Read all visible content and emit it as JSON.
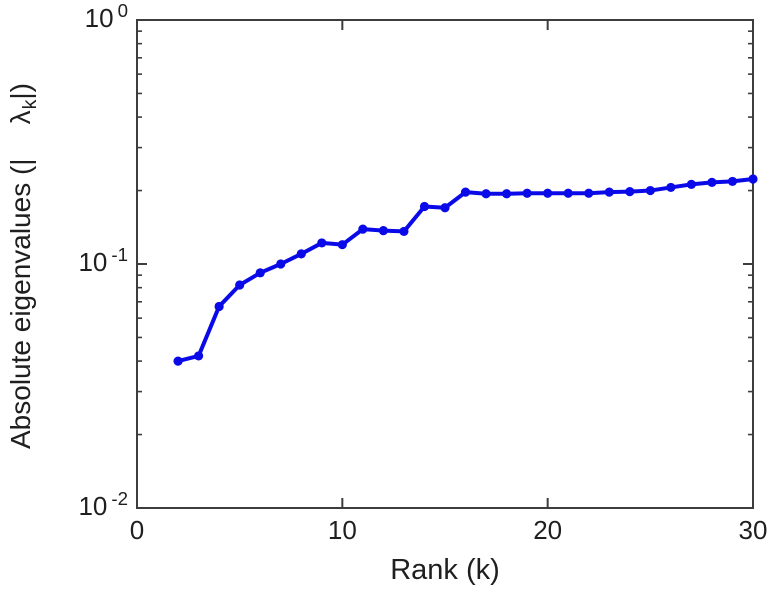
{
  "figure": {
    "background": "#ffffff",
    "axis_color": "#3d3d3d",
    "text_color": "#1f1f1f",
    "xlabel": "Rank (k)",
    "ylabel": {
      "prefix": "Absolute eigenvalues (|",
      "lambda": "λ",
      "subscript": "k",
      "suffix": "|)"
    }
  },
  "chart_data": {
    "type": "line",
    "title": "",
    "xlabel": "Rank (k)",
    "ylabel": "Absolute eigenvalues (| λ_k |)",
    "yscale": "log",
    "xlim": [
      0,
      30
    ],
    "ylim": [
      0.01,
      1
    ],
    "grid": false,
    "legend": null,
    "line_color": "#0a0ae8",
    "marker": "filled-circle",
    "series_name": "absolute-eigenvalues",
    "x": [
      2,
      3,
      4,
      5,
      6,
      7,
      8,
      9,
      10,
      11,
      12,
      13,
      14,
      15,
      16,
      17,
      18,
      19,
      20,
      21,
      22,
      23,
      24,
      25,
      26,
      27,
      28,
      29,
      30
    ],
    "y": [
      0.04,
      0.042,
      0.067,
      0.082,
      0.092,
      0.1,
      0.11,
      0.122,
      0.12,
      0.139,
      0.137,
      0.136,
      0.172,
      0.17,
      0.197,
      0.194,
      0.194,
      0.195,
      0.195,
      0.195,
      0.195,
      0.197,
      0.198,
      0.2,
      0.206,
      0.212,
      0.216,
      0.218,
      0.223
    ],
    "x_ticks": {
      "values": [
        0,
        10,
        20,
        30
      ],
      "labels": [
        "0",
        "10",
        "20",
        "30"
      ]
    },
    "y_ticks": {
      "values": [
        1,
        0.1,
        0.01
      ],
      "labels": [
        {
          "base": "10",
          "exp": "0"
        },
        {
          "base": "10",
          "exp": "-1"
        },
        {
          "base": "10",
          "exp": "-2"
        }
      ]
    }
  }
}
